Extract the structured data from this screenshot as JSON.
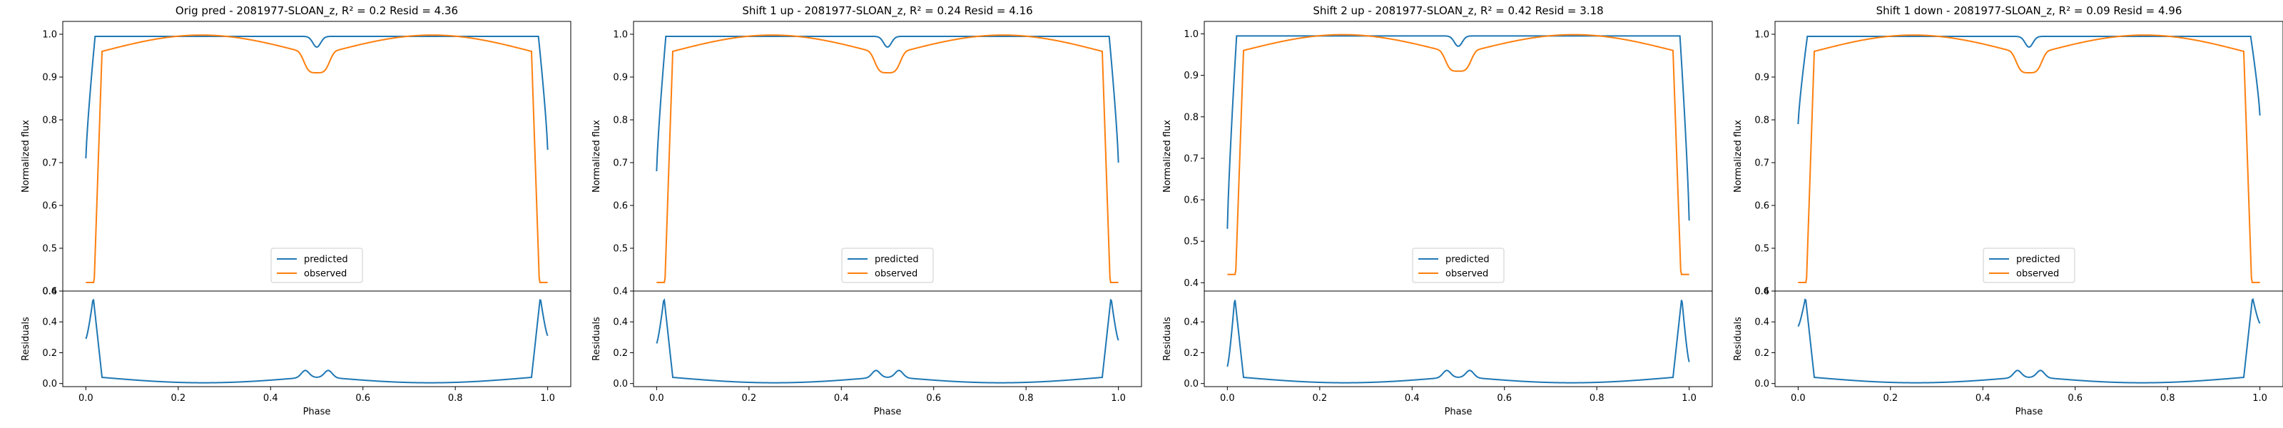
{
  "chart_data": [
    {
      "type": "line",
      "title": "Orig pred - 2081977-SLOAN_z, R² = 0.2 Resid = 4.36",
      "ylabel": "Normalized flux",
      "ylim": [
        0.4,
        1.03
      ],
      "yticks": [
        "0.4",
        "0.5",
        "0.6",
        "0.7",
        "0.8",
        "0.9",
        "1.0"
      ],
      "legend": {
        "position": "lower-center",
        "entries": [
          "predicted",
          "observed"
        ]
      },
      "colors": {
        "predicted": "#1f77b4",
        "observed": "#ff7f0e"
      },
      "predicted_edge": [
        0.71,
        0.73
      ],
      "residuals": {
        "ylabel": "Residuals",
        "ylim": [
          -0.02,
          0.6
        ],
        "yticks": [
          "0.0",
          "0.2",
          "0.4",
          "0.6"
        ],
        "start": [
          0.29,
          0.31
        ]
      },
      "xlabel": "Phase",
      "xlim": [
        -0.05,
        1.05
      ],
      "xticks": [
        "0.0",
        "0.2",
        "0.4",
        "0.6",
        "0.8",
        "1.0"
      ]
    },
    {
      "type": "line",
      "title": "Shift 1 up - 2081977-SLOAN_z, R² = 0.24 Resid = 4.16",
      "ylabel": "Normalized flux",
      "ylim": [
        0.4,
        1.03
      ],
      "yticks": [
        "0.4",
        "0.5",
        "0.6",
        "0.7",
        "0.8",
        "0.9",
        "1.0"
      ],
      "legend": {
        "position": "lower-center",
        "entries": [
          "predicted",
          "observed"
        ]
      },
      "colors": {
        "predicted": "#1f77b4",
        "observed": "#ff7f0e"
      },
      "predicted_edge": [
        0.68,
        0.7
      ],
      "residuals": {
        "ylabel": "Residuals",
        "ylim": [
          -0.02,
          0.6
        ],
        "yticks": [
          "0.0",
          "0.2",
          "0.4"
        ],
        "start": [
          0.26,
          0.28
        ]
      },
      "xlabel": "Phase",
      "xlim": [
        -0.05,
        1.05
      ],
      "xticks": [
        "0.0",
        "0.2",
        "0.4",
        "0.6",
        "0.8",
        "1.0"
      ]
    },
    {
      "type": "line",
      "title": "Shift 2 up - 2081977-SLOAN_z, R² = 0.42 Resid = 3.18",
      "ylabel": "Normalized flux",
      "ylim": [
        0.38,
        1.03
      ],
      "yticks": [
        "0.4",
        "0.5",
        "0.6",
        "0.7",
        "0.8",
        "0.9",
        "1.0"
      ],
      "legend": {
        "position": "lower-center",
        "entries": [
          "predicted",
          "observed"
        ]
      },
      "colors": {
        "predicted": "#1f77b4",
        "observed": "#ff7f0e"
      },
      "predicted_edge": [
        0.53,
        0.55
      ],
      "residuals": {
        "ylabel": "Residuals",
        "ylim": [
          -0.02,
          0.6
        ],
        "yticks": [
          "0.0",
          "0.2",
          "0.4"
        ],
        "start": [
          0.11,
          0.14
        ]
      },
      "xlabel": "Phase",
      "xlim": [
        -0.05,
        1.05
      ],
      "xticks": [
        "0.0",
        "0.2",
        "0.4",
        "0.6",
        "0.8",
        "1.0"
      ]
    },
    {
      "type": "line",
      "title": "Shift 1 down - 2081977-SLOAN_z, R² = 0.09 Resid = 4.96",
      "ylabel": "Normalized flux",
      "ylim": [
        0.4,
        1.03
      ],
      "yticks": [
        "0.4",
        "0.5",
        "0.6",
        "0.7",
        "0.8",
        "0.9",
        "1.0"
      ],
      "legend": {
        "position": "lower-center",
        "entries": [
          "predicted",
          "observed"
        ]
      },
      "colors": {
        "predicted": "#1f77b4",
        "observed": "#ff7f0e"
      },
      "predicted_edge": [
        0.79,
        0.81
      ],
      "residuals": {
        "ylabel": "Residuals",
        "ylim": [
          -0.02,
          0.6
        ],
        "yticks": [
          "0.0",
          "0.2",
          "0.4",
          "0.6"
        ],
        "start": [
          0.37,
          0.39
        ]
      },
      "xlabel": "Phase",
      "xlim": [
        -0.05,
        1.05
      ],
      "xticks": [
        "0.0",
        "0.2",
        "0.4",
        "0.6",
        "0.8",
        "1.0"
      ]
    }
  ]
}
